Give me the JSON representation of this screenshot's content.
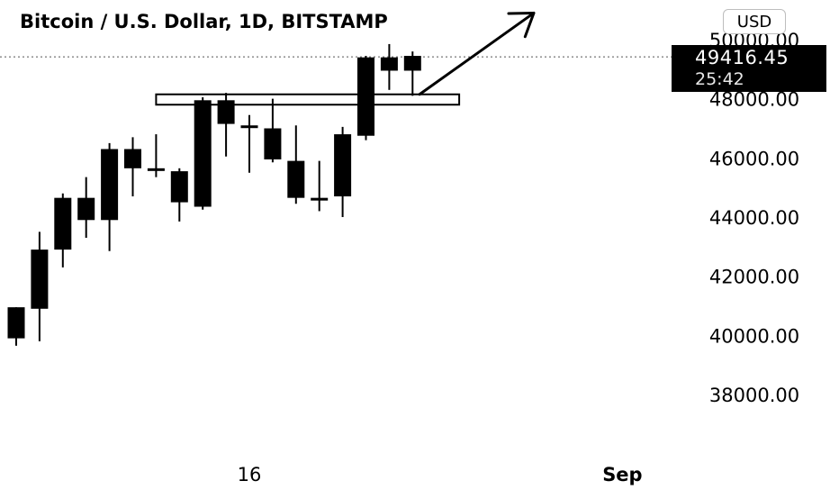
{
  "header": {
    "title": "Bitcoin / U.S. Dollar, 1D, BITSTAMP",
    "currency_label": "USD"
  },
  "price_label": {
    "price": "49416.45",
    "countdown": "25:42"
  },
  "colors": {
    "candle": "#000000",
    "background": "#ffffff",
    "price_box": "#000000"
  },
  "chart_data": {
    "type": "candlestick",
    "title": "Bitcoin / U.S. Dollar, 1D, BITSTAMP",
    "y_axis": {
      "ticks": [
        38000,
        40000,
        42000,
        44000,
        46000,
        48000,
        50000
      ],
      "tick_labels": [
        "38000.00",
        "40000.00",
        "42000.00",
        "44000.00",
        "46000.00",
        "48000.00",
        "50000.00"
      ],
      "position": "right"
    },
    "x_axis": {
      "tick_labels": [
        {
          "label": "16",
          "after_candle": 10
        },
        {
          "label": "Sep",
          "after_candle": 26
        }
      ]
    },
    "ylim": [
      36500,
      50500
    ],
    "last_price": 49416.45,
    "candles": [
      {
        "open": 39900,
        "high": 40950,
        "low": 39650,
        "close": 40950
      },
      {
        "open": 40900,
        "high": 43500,
        "low": 39800,
        "close": 42900
      },
      {
        "open": 42900,
        "high": 44800,
        "low": 42300,
        "close": 44650
      },
      {
        "open": 44650,
        "high": 45350,
        "low": 43300,
        "close": 43900
      },
      {
        "open": 43900,
        "high": 46500,
        "low": 42850,
        "close": 46300
      },
      {
        "open": 46300,
        "high": 46700,
        "low": 44700,
        "close": 45650
      },
      {
        "open": 45650,
        "high": 46800,
        "low": 45350,
        "close": 45600
      },
      {
        "open": 45550,
        "high": 45650,
        "low": 43850,
        "close": 44500
      },
      {
        "open": 44350,
        "high": 48050,
        "low": 44250,
        "close": 47950
      },
      {
        "open": 47950,
        "high": 48200,
        "low": 46050,
        "close": 47150
      },
      {
        "open": 47100,
        "high": 47450,
        "low": 45500,
        "close": 47050
      },
      {
        "open": 47000,
        "high": 48000,
        "low": 45850,
        "close": 45950
      },
      {
        "open": 45900,
        "high": 47100,
        "low": 44450,
        "close": 44650
      },
      {
        "open": 44650,
        "high": 45900,
        "low": 44200,
        "close": 44600
      },
      {
        "open": 44700,
        "high": 47050,
        "low": 44000,
        "close": 46800
      },
      {
        "open": 46750,
        "high": 49450,
        "low": 46600,
        "close": 49400
      },
      {
        "open": 48950,
        "high": 49850,
        "low": 48300,
        "close": 49400
      },
      {
        "open": 49450,
        "high": 49600,
        "low": 48100,
        "close": 48950
      }
    ],
    "annotations": [
      {
        "type": "rectangle",
        "from_candle": 6,
        "to_candle": 19,
        "y_top": 48150,
        "y_bottom": 47800
      },
      {
        "type": "arrow",
        "from_candle": 17.3,
        "from_y": 48150,
        "to_candle": 22.2,
        "to_y": 50900
      },
      {
        "type": "horizontal_dotted_line",
        "y": 49416.45
      }
    ]
  }
}
